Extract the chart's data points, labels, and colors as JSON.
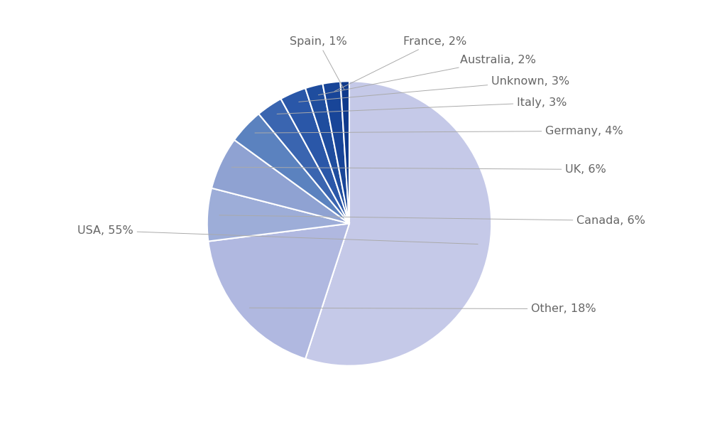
{
  "labels": [
    "USA",
    "Other",
    "Canada",
    "UK",
    "Germany",
    "Italy",
    "Unknown",
    "Australia",
    "France",
    "Spain"
  ],
  "values": [
    55,
    18,
    6,
    6,
    4,
    3,
    3,
    2,
    2,
    1
  ],
  "colors": [
    "#c5c9e8",
    "#b0b8e0",
    "#9dadd8",
    "#8fa2d2",
    "#5b82bf",
    "#3a65b0",
    "#2a57a8",
    "#1f4d9e",
    "#184598",
    "#0f3a8c"
  ],
  "wedge_edge_color": "white",
  "wedge_edge_width": 1.5,
  "background_color": "#ffffff",
  "label_fontsize": 11.5,
  "label_color": "#666666",
  "startangle": 90,
  "label_texts": {
    "USA": "USA, 55%",
    "Other": "Other, 18%",
    "Canada": "Canada, 6%",
    "UK": "UK, 6%",
    "Germany": "Germany, 4%",
    "Italy": "Italy, 3%",
    "Unknown": "Unknown, 3%",
    "Australia": "Australia, 2%",
    "France": "France, 2%",
    "Spain": "Spain, 1%"
  }
}
